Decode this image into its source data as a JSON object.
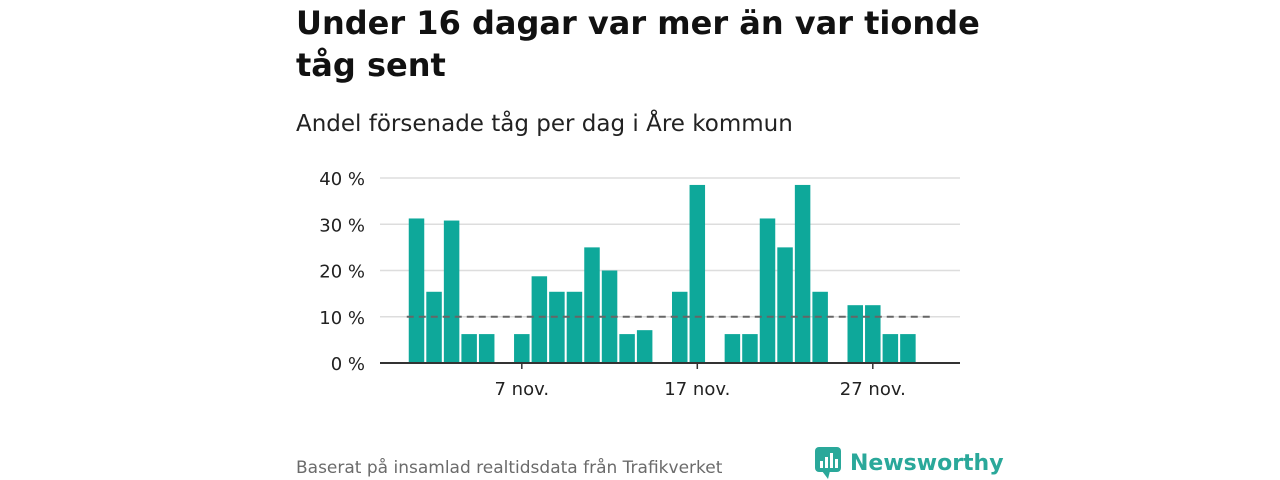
{
  "header": {
    "title": "Under 16 dagar var mer än var tionde tåg sent",
    "subtitle": "Andel försenade tåg per dag i Åre kommun"
  },
  "footer": {
    "source": "Baserat på insamlad realtidsdata från Trafikverket",
    "brand": "Newsworthy"
  },
  "colors": {
    "bar": "#0ea89a",
    "reference_line": "#666666",
    "grid": "#dddddd",
    "brand": "#2aa89a"
  },
  "chart_data": {
    "type": "bar",
    "x_start": "1 nov.",
    "categories": [
      "1 nov.",
      "2 nov.",
      "3 nov.",
      "4 nov.",
      "5 nov.",
      "6 nov.",
      "7 nov.",
      "8 nov.",
      "9 nov.",
      "10 nov.",
      "11 nov.",
      "12 nov.",
      "13 nov.",
      "14 nov.",
      "15 nov.",
      "16 nov.",
      "17 nov.",
      "18 nov.",
      "19 nov.",
      "20 nov.",
      "21 nov.",
      "22 nov.",
      "23 nov.",
      "24 nov.",
      "25 nov.",
      "26 nov.",
      "27 nov.",
      "28 nov.",
      "29 nov.",
      "30 nov."
    ],
    "values": [
      31.25,
      15.4,
      30.8,
      6.25,
      6.25,
      null,
      6.25,
      18.75,
      15.4,
      15.4,
      25.0,
      20.0,
      6.25,
      7.1,
      null,
      15.4,
      38.5,
      null,
      6.25,
      6.25,
      31.25,
      25.0,
      38.5,
      15.4,
      null,
      12.5,
      12.5,
      6.25,
      6.25,
      null
    ],
    "reference_value": 10,
    "reference_style": "dashed",
    "xticks": [
      "7 nov.",
      "17 nov.",
      "27 nov."
    ],
    "xtick_indices": [
      6,
      16,
      26
    ],
    "yticks": [
      "0 %",
      "10 %",
      "20 %",
      "30 %",
      "40 %"
    ],
    "ytick_values": [
      0,
      10,
      20,
      30,
      40
    ],
    "ylim": [
      0,
      40
    ],
    "unit": "%",
    "grid": true,
    "legend": "none"
  }
}
